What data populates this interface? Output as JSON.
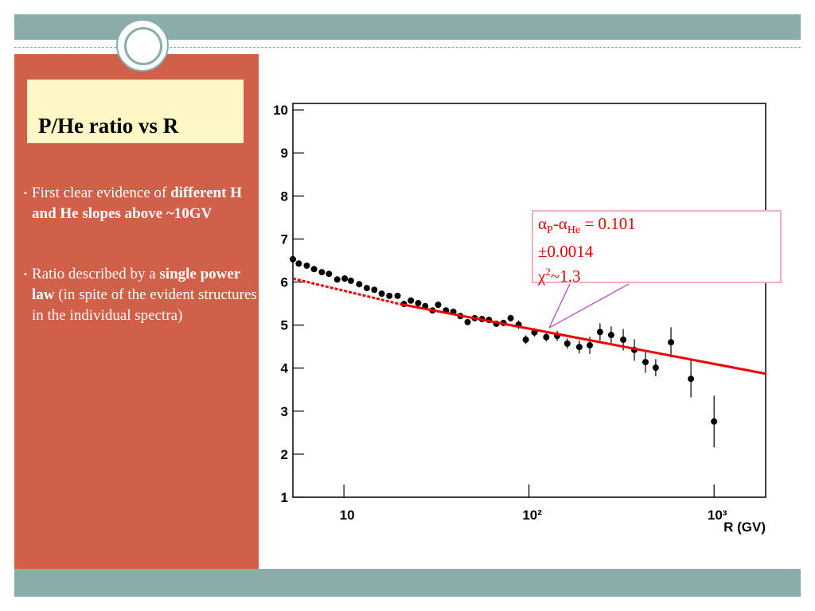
{
  "slide": {
    "title": "P/He ratio vs R",
    "bullets": [
      {
        "plain": "First clear evidence of ",
        "bold": "different  H and He slopes above ~10GV",
        "after": ""
      },
      {
        "plain": "Ratio described by a ",
        "bold": "single power law",
        "after": "  (in spite of the evident  structures  in the individual spectra)"
      }
    ],
    "annotation": {
      "line1": [
        "α",
        "P",
        "-α",
        "He",
        " = 0.101"
      ],
      "line2": "±0.0014",
      "line3": [
        "χ",
        "2",
        "~1.3"
      ]
    }
  },
  "chart_data": {
    "type": "scatter",
    "x_label": "R (GV)",
    "xlim": [
      5.3,
      1900
    ],
    "log_x": true,
    "xticks": [
      10,
      {
        "value": 100,
        "label": "10²"
      },
      {
        "value": 1000,
        "label": "10³"
      }
    ],
    "ylim": [
      1,
      10.15
    ],
    "yticks": [
      1,
      2,
      3,
      4,
      5,
      6,
      7,
      8,
      9,
      10
    ],
    "series": [
      {
        "color": "#000000",
        "x": [
          5.3,
          5.7,
          6.3,
          6.9,
          7.6,
          8.3,
          9.2,
          10.1,
          10.9,
          12.1,
          13.3,
          14.6,
          16.0,
          17.6,
          19.5,
          21.1,
          23.0,
          25.2,
          27.5,
          30.1,
          32.3,
          35.6,
          39.0,
          42.6,
          46.6,
          50.9,
          55.7,
          60.8,
          66.6,
          72.8,
          79.6,
          87.9,
          96.1,
          107,
          124,
          142,
          161,
          187,
          213,
          242,
          278,
          323,
          371,
          426,
          484,
          585,
          750,
          1000
        ],
        "values": [
          6.53,
          6.43,
          6.38,
          6.3,
          6.23,
          6.19,
          6.06,
          6.08,
          6.03,
          5.95,
          5.86,
          5.82,
          5.73,
          5.68,
          5.68,
          5.49,
          5.57,
          5.51,
          5.44,
          5.34,
          5.47,
          5.34,
          5.31,
          5.21,
          5.07,
          5.16,
          5.14,
          5.12,
          5.03,
          5.05,
          5.16,
          5.01,
          4.66,
          4.83,
          4.72,
          4.75,
          4.57,
          4.49,
          4.53,
          4.84,
          4.77,
          4.66,
          4.42,
          4.14,
          4.01,
          4.6,
          3.75,
          2.76
        ],
        "errors": [
          0.05,
          0.05,
          0.05,
          0.05,
          0.05,
          0.05,
          0.05,
          0.05,
          0.05,
          0.05,
          0.05,
          0.05,
          0.05,
          0.05,
          0.05,
          0.05,
          0.05,
          0.05,
          0.05,
          0.05,
          0.05,
          0.05,
          0.05,
          0.05,
          0.05,
          0.05,
          0.05,
          0.05,
          0.05,
          0.05,
          0.08,
          0.1,
          0.1,
          0.1,
          0.1,
          0.12,
          0.12,
          0.15,
          0.2,
          0.2,
          0.2,
          0.25,
          0.25,
          0.25,
          0.2,
          0.35,
          0.43,
          0.6
        ]
      },
      {
        "color": "#ee0000",
        "style": "dashed",
        "x": [
          5.3,
          20
        ],
        "values": [
          6.08,
          5.49
        ]
      },
      {
        "color": "#ee0000",
        "style": "solid",
        "x": [
          20,
          1900
        ],
        "values": [
          5.49,
          3.87
        ]
      }
    ]
  }
}
